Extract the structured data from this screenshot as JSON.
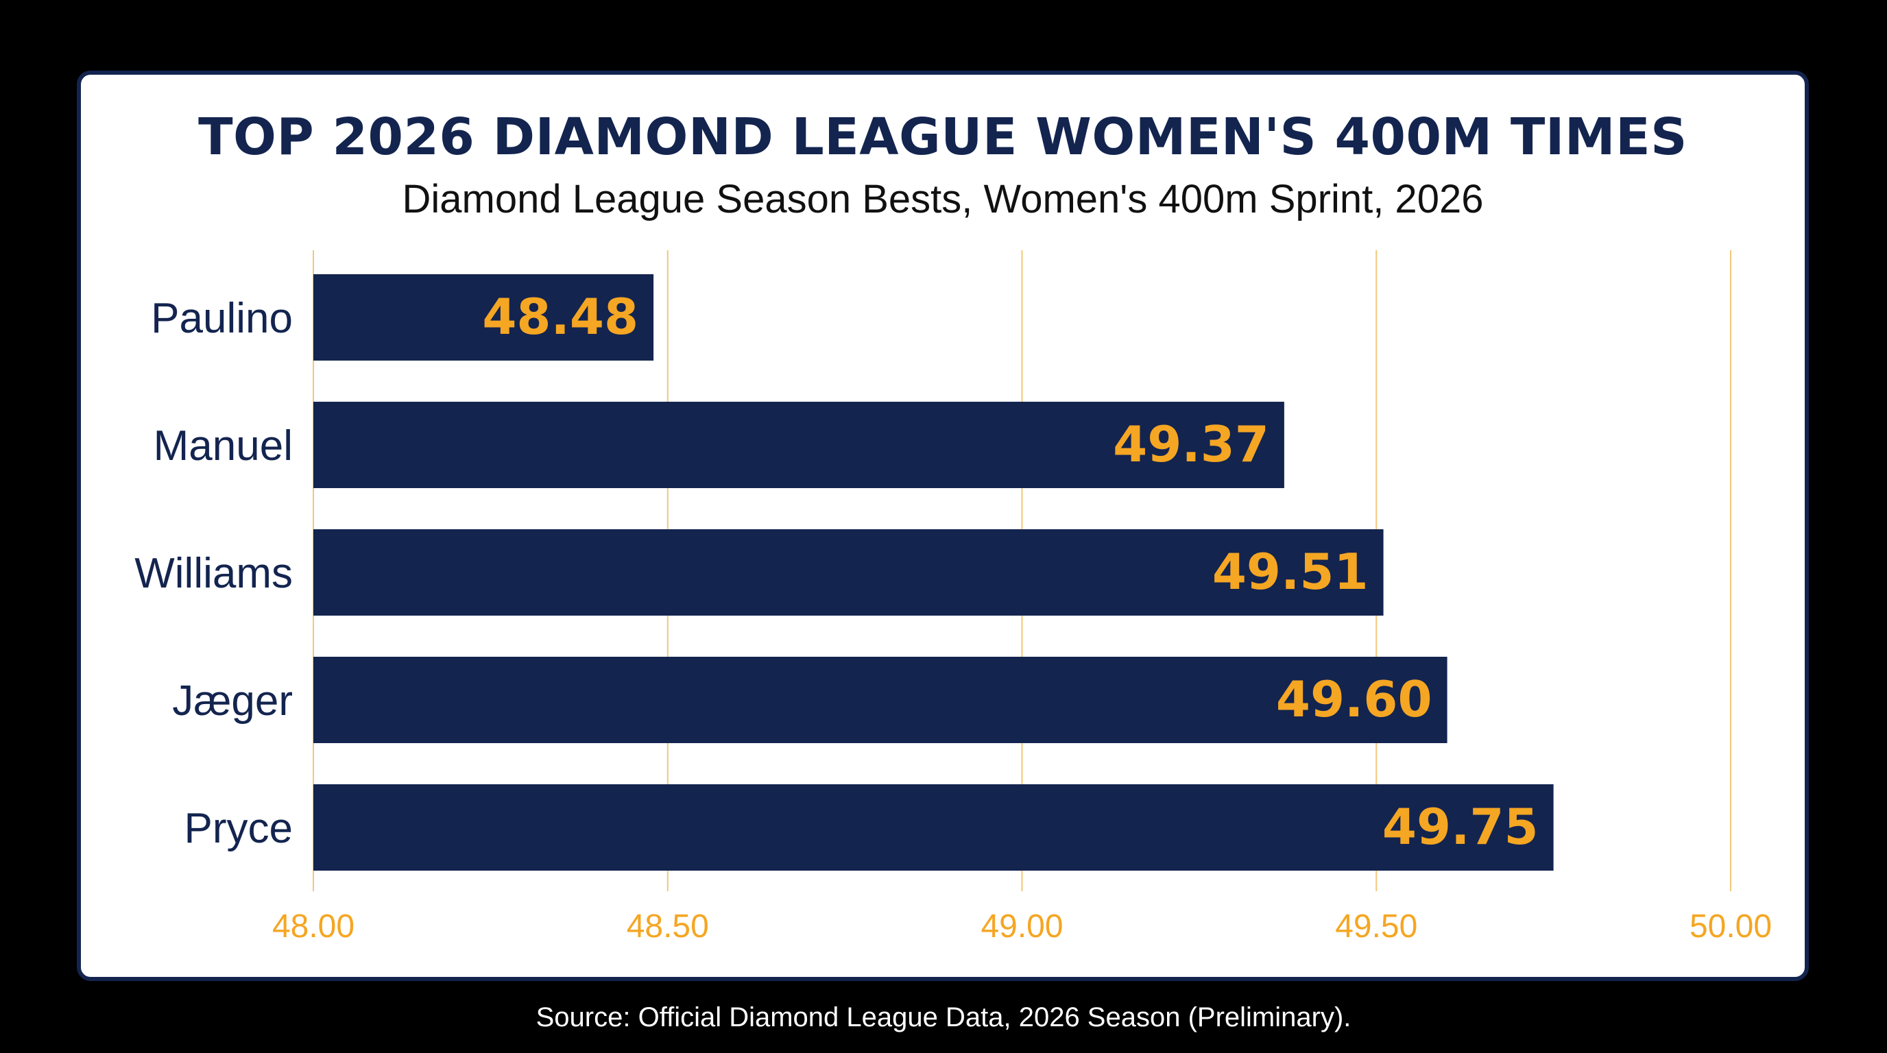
{
  "title": "TOP 2026 DIAMOND LEAGUE WOMEN'S 400M TIMES",
  "subtitle": "Diamond League Season Bests, Women's 400m Sprint, 2026",
  "source": "Source: Official Diamond League Data, 2026 Season (Preliminary).",
  "colors": {
    "bar": "#13244f",
    "value_label": "#f5a623",
    "gridline": "#f0c87a",
    "tick_label": "#f5a623",
    "category_label": "#13244f",
    "background": "#000000",
    "card": "#ffffff"
  },
  "chart_data": {
    "type": "bar",
    "orientation": "horizontal",
    "categories": [
      "Paulino",
      "Manuel",
      "Williams",
      "Jæger",
      "Pryce"
    ],
    "values": [
      48.48,
      49.37,
      49.51,
      49.6,
      49.75
    ],
    "value_labels": [
      "48.48",
      "49.37",
      "49.51",
      "49.60",
      "49.75"
    ],
    "xlim": [
      48.0,
      50.0
    ],
    "xticks": [
      48.0,
      48.5,
      49.0,
      49.5,
      50.0
    ],
    "xtick_labels": [
      "48.00",
      "48.50",
      "49.00",
      "49.50",
      "50.00"
    ],
    "title": "TOP 2026 DIAMOND LEAGUE WOMEN'S 400M TIMES",
    "subtitle": "Diamond League Season Bests, Women's 400m Sprint, 2026",
    "xlabel": "",
    "ylabel": "",
    "grid": "vertical"
  }
}
